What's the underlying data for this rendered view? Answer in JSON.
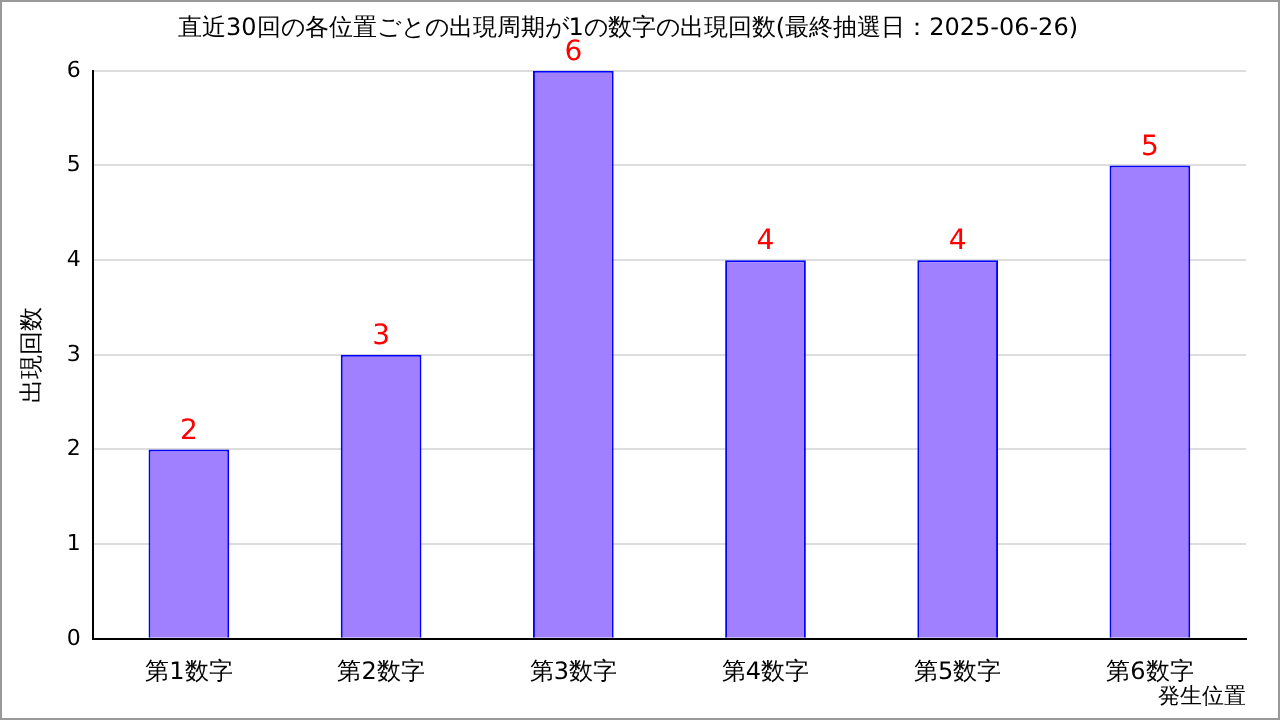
{
  "chart_data": {
    "type": "bar",
    "title": "直近30回の各位置ごとの出現周期が1の数字の出現回数(最終抽選日：2025-06-26)",
    "categories": [
      "第1数字",
      "第2数字",
      "第3数字",
      "第4数字",
      "第5数字",
      "第6数字"
    ],
    "values": [
      2,
      3,
      6,
      4,
      4,
      5
    ],
    "color": "#a080ff",
    "ylim": [
      0,
      6
    ],
    "yticks": [
      0,
      1,
      2,
      3,
      4,
      5,
      6
    ],
    "grid": "y",
    "data_labels": true,
    "xlabel": "発生位置",
    "ylabel": "出現回数"
  }
}
